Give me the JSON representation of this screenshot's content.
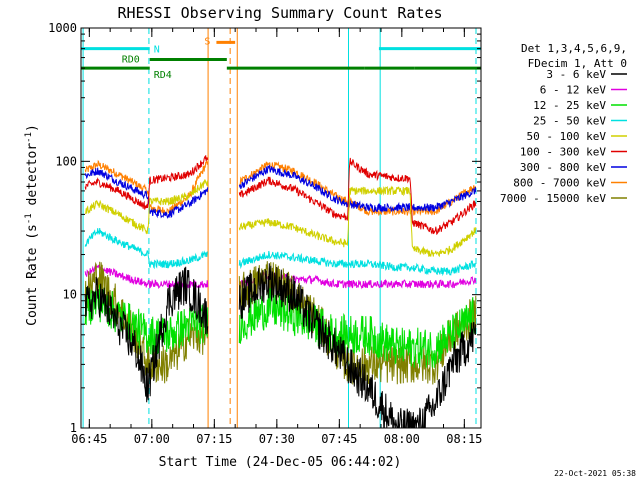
{
  "chart_data": {
    "type": "line",
    "title": "RHESSI Observing Summary Count Rates",
    "xlabel": "Start Time (24-Dec-05 06:44:02)",
    "ylabel_main": "Count Rate (s",
    "ylabel_sup1": "-1",
    "ylabel_mid": " detector",
    "ylabel_sup2": "-1",
    "ylabel_end": ")",
    "y_scale": "log",
    "ylim": [
      1,
      1000
    ],
    "xlim_minutes": [
      -1,
      95
    ],
    "x_ticks": [
      {
        "label": "06:45",
        "t": 1
      },
      {
        "label": "07:00",
        "t": 16
      },
      {
        "label": "07:15",
        "t": 31
      },
      {
        "label": "07:30",
        "t": 46
      },
      {
        "label": "07:45",
        "t": 61
      },
      {
        "label": "08:00",
        "t": 76
      },
      {
        "label": "08:15",
        "t": 91
      }
    ],
    "y_ticks": [
      {
        "label": "1",
        "v": 1
      },
      {
        "label": "10",
        "v": 10
      },
      {
        "label": "100",
        "v": 100
      },
      {
        "label": "1000",
        "v": 1000
      }
    ],
    "legend": {
      "header": [
        "Det 1,3,4,5,6,9,",
        "FDecim 1, Att 0"
      ],
      "entries": [
        {
          "name": "3 - 6 keV",
          "color": "#000000"
        },
        {
          "name": "6 - 12 keV",
          "color": "#e000e0"
        },
        {
          "name": "12 - 25 keV",
          "color": "#00e000"
        },
        {
          "name": "25 - 50 keV",
          "color": "#00e0e0"
        },
        {
          "name": "50 - 100 keV",
          "color": "#d0d000"
        },
        {
          "name": "100 - 300 keV",
          "color": "#e00000"
        },
        {
          "name": "300 - 800 keV",
          "color": "#0000e0"
        },
        {
          "name": "800 - 7000 keV",
          "color": "#ff8000"
        },
        {
          "name": "7000 - 15000 keV",
          "color": "#808000"
        }
      ]
    },
    "flags": [
      {
        "label": "N",
        "color": "#00e0e0",
        "level": 700,
        "segments": [
          [
            -1,
            15.5
          ],
          [
            70.5,
            95
          ]
        ]
      },
      {
        "label": "S",
        "color": "#ff8000",
        "level": 780,
        "segments": [
          [
            31.5,
            36
          ]
        ]
      },
      {
        "label": "RD0",
        "color": "#008000",
        "level": 580,
        "segments": [
          [
            15.5,
            34
          ]
        ]
      },
      {
        "label": "RD4",
        "color": "#008000",
        "level": 500,
        "segments": [
          [
            -1,
            15.5
          ],
          [
            34,
            50
          ],
          [
            50,
            67
          ],
          [
            67,
            79
          ],
          [
            79,
            95
          ]
        ]
      }
    ],
    "night_boundaries": [
      {
        "t": -0.5,
        "color": "#00e0e0",
        "style": "solid"
      },
      {
        "t": 15.3,
        "color": "#00e0e0",
        "style": "dashed"
      },
      {
        "t": 29.5,
        "color": "#ff8000",
        "style": "solid"
      },
      {
        "t": 34.8,
        "color": "#ff8000",
        "style": "dashed"
      },
      {
        "t": 36.5,
        "color": "#ff8000",
        "style": "solid"
      },
      {
        "t": 63.2,
        "color": "#00e0e0",
        "style": "solid"
      },
      {
        "t": 70.8,
        "color": "#00e0e0",
        "style": "solid"
      },
      {
        "t": 93.8,
        "color": "#00e0e0",
        "style": "dashed"
      }
    ],
    "segments": [
      [
        0,
        29.5
      ],
      [
        37,
        93.8
      ]
    ],
    "series_shape": [
      {
        "name": "800 - 7000 keV",
        "profile": [
          [
            0,
            85
          ],
          [
            3,
            95
          ],
          [
            8,
            80
          ],
          [
            15,
            60
          ],
          [
            15.5,
            45
          ],
          [
            20,
            42
          ],
          [
            25,
            55
          ],
          [
            29,
            95
          ],
          [
            37,
            70
          ],
          [
            44,
            95
          ],
          [
            50,
            85
          ],
          [
            55,
            70
          ],
          [
            60,
            55
          ],
          [
            63,
            50
          ],
          [
            63.5,
            50
          ],
          [
            68,
            42
          ],
          [
            75,
            42
          ],
          [
            78,
            42
          ],
          [
            84,
            42
          ],
          [
            88,
            50
          ],
          [
            93.5,
            65
          ]
        ]
      },
      {
        "name": "300 - 800 keV",
        "profile": [
          [
            0,
            78
          ],
          [
            3,
            85
          ],
          [
            8,
            70
          ],
          [
            15,
            55
          ],
          [
            15.5,
            42
          ],
          [
            20,
            40
          ],
          [
            25,
            48
          ],
          [
            29,
            60
          ],
          [
            37,
            65
          ],
          [
            44,
            88
          ],
          [
            50,
            78
          ],
          [
            55,
            65
          ],
          [
            60,
            52
          ],
          [
            63,
            48
          ],
          [
            63.5,
            48
          ],
          [
            68,
            45
          ],
          [
            75,
            45
          ],
          [
            78,
            45
          ],
          [
            84,
            45
          ],
          [
            88,
            50
          ],
          [
            93.5,
            60
          ]
        ]
      },
      {
        "name": "100 - 300 keV",
        "profile": [
          [
            0,
            65
          ],
          [
            3,
            70
          ],
          [
            8,
            60
          ],
          [
            15,
            45
          ],
          [
            15.5,
            72
          ],
          [
            20,
            75
          ],
          [
            25,
            80
          ],
          [
            29,
            105
          ],
          [
            37,
            55
          ],
          [
            44,
            72
          ],
          [
            50,
            62
          ],
          [
            55,
            50
          ],
          [
            60,
            40
          ],
          [
            63,
            38
          ],
          [
            63.5,
            100
          ],
          [
            68,
            80
          ],
          [
            75,
            75
          ],
          [
            78,
            75
          ],
          [
            78.5,
            35
          ],
          [
            84,
            30
          ],
          [
            88,
            35
          ],
          [
            93.5,
            48
          ]
        ]
      },
      {
        "name": "50 - 100 keV",
        "profile": [
          [
            0,
            42
          ],
          [
            3,
            48
          ],
          [
            8,
            40
          ],
          [
            15,
            30
          ],
          [
            15.5,
            50
          ],
          [
            20,
            50
          ],
          [
            25,
            55
          ],
          [
            29,
            70
          ],
          [
            37,
            32
          ],
          [
            44,
            35
          ],
          [
            50,
            32
          ],
          [
            55,
            28
          ],
          [
            60,
            25
          ],
          [
            63,
            24
          ],
          [
            63.5,
            60
          ],
          [
            68,
            60
          ],
          [
            75,
            60
          ],
          [
            78,
            60
          ],
          [
            78.5,
            22
          ],
          [
            84,
            20
          ],
          [
            88,
            22
          ],
          [
            93.5,
            30
          ]
        ]
      },
      {
        "name": "25 - 50 keV",
        "profile": [
          [
            0,
            24
          ],
          [
            3,
            30
          ],
          [
            8,
            25
          ],
          [
            15,
            20
          ],
          [
            15.5,
            17
          ],
          [
            20,
            17
          ],
          [
            25,
            18
          ],
          [
            29,
            20
          ],
          [
            37,
            17
          ],
          [
            44,
            20
          ],
          [
            50,
            19
          ],
          [
            55,
            18
          ],
          [
            60,
            17
          ],
          [
            63,
            17
          ],
          [
            68,
            17
          ],
          [
            75,
            16
          ],
          [
            78,
            16
          ],
          [
            84,
            15
          ],
          [
            88,
            15
          ],
          [
            93.5,
            17
          ]
        ]
      },
      {
        "name": "6 - 12 keV",
        "profile": [
          [
            0,
            14
          ],
          [
            3,
            16
          ],
          [
            8,
            14
          ],
          [
            15,
            12
          ],
          [
            20,
            12
          ],
          [
            25,
            12
          ],
          [
            29,
            12
          ],
          [
            37,
            12
          ],
          [
            44,
            14
          ],
          [
            50,
            13
          ],
          [
            55,
            13
          ],
          [
            60,
            12
          ],
          [
            63,
            12
          ],
          [
            68,
            12
          ],
          [
            75,
            12
          ],
          [
            84,
            12
          ],
          [
            88,
            12
          ],
          [
            93.5,
            13
          ]
        ]
      },
      {
        "name": "7000 - 15000 keV",
        "profile": [
          [
            0,
            10
          ],
          [
            3,
            14
          ],
          [
            8,
            8
          ],
          [
            12,
            5
          ],
          [
            15,
            3
          ],
          [
            20,
            3
          ],
          [
            25,
            5
          ],
          [
            29,
            5
          ],
          [
            37,
            10
          ],
          [
            44,
            14
          ],
          [
            50,
            10
          ],
          [
            55,
            7
          ],
          [
            60,
            4
          ],
          [
            63,
            3
          ],
          [
            68,
            3
          ],
          [
            75,
            3
          ],
          [
            84,
            3
          ],
          [
            88,
            5
          ],
          [
            93.5,
            7
          ]
        ]
      },
      {
        "name": "12 - 25 keV",
        "profile": [
          [
            0,
            8
          ],
          [
            3,
            9
          ],
          [
            8,
            7
          ],
          [
            15,
            5
          ],
          [
            20,
            5
          ],
          [
            25,
            6
          ],
          [
            29,
            6
          ],
          [
            37,
            6
          ],
          [
            44,
            8
          ],
          [
            50,
            7
          ],
          [
            55,
            6
          ],
          [
            60,
            5
          ],
          [
            63,
            5
          ],
          [
            68,
            5
          ],
          [
            75,
            4
          ],
          [
            84,
            4
          ],
          [
            88,
            5
          ],
          [
            93.5,
            7
          ]
        ]
      },
      {
        "name": "3 - 6 keV",
        "profile": [
          [
            0,
            8
          ],
          [
            3,
            10
          ],
          [
            8,
            6
          ],
          [
            12,
            4
          ],
          [
            15,
            2
          ],
          [
            20,
            9
          ],
          [
            24,
            12
          ],
          [
            29,
            7
          ],
          [
            37,
            9
          ],
          [
            44,
            13
          ],
          [
            50,
            10
          ],
          [
            55,
            6
          ],
          [
            60,
            4
          ],
          [
            63,
            3
          ],
          [
            68,
            2
          ],
          [
            75,
            1
          ],
          [
            80,
            1
          ],
          [
            84,
            1.5
          ],
          [
            88,
            3
          ],
          [
            93.5,
            5
          ]
        ]
      }
    ]
  },
  "footer": {
    "date_stamp": "22-Oct-2021 05:38"
  }
}
